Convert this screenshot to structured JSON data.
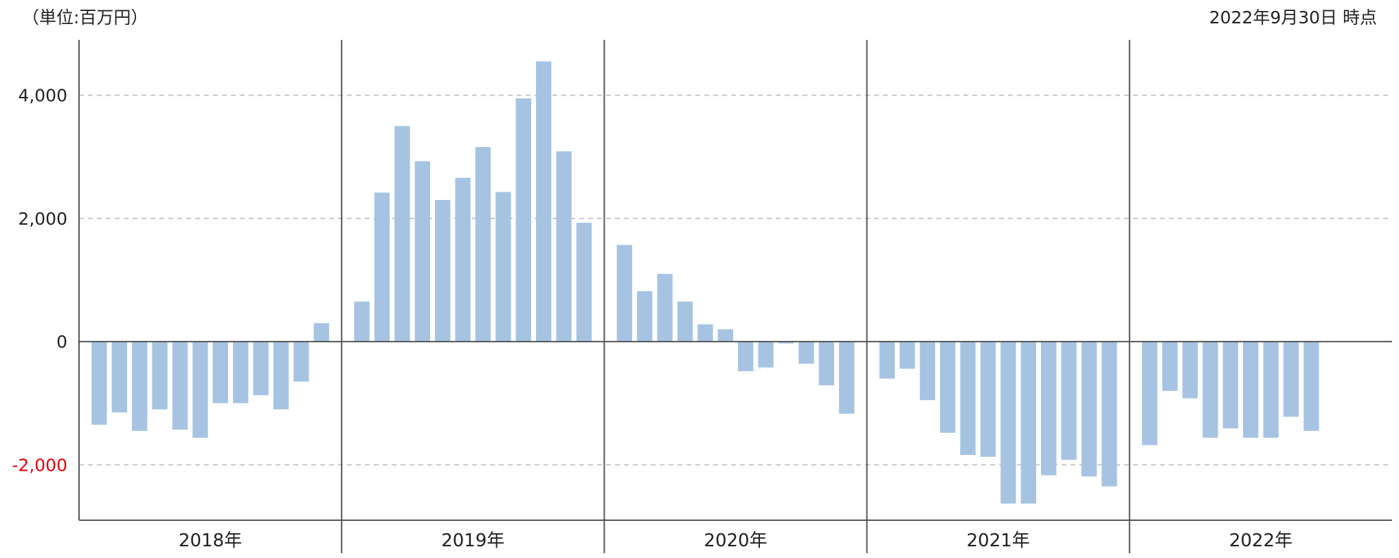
{
  "header": {
    "unit": "（単位:百万円）",
    "as_of": "2022年9月30日 時点"
  },
  "colors": {
    "bar": "#a6c4e2",
    "axis": "#555555",
    "grid": "#c8c8c8",
    "negative_tick": "#e8000b"
  },
  "chart_data": {
    "type": "bar",
    "ylim": [
      -2900,
      4900
    ],
    "yticks": [
      -2000,
      0,
      2000,
      4000
    ],
    "ytick_labels": [
      "-2,000",
      "0",
      "2,000",
      "4,000"
    ],
    "grid": true,
    "years": [
      {
        "label": "2018年",
        "values": [
          -1350,
          -1150,
          -1450,
          -1100,
          -1430,
          -1560,
          -1000,
          -1000,
          -870,
          -1100,
          -650,
          300
        ]
      },
      {
        "label": "2019年",
        "values": [
          650,
          2420,
          3500,
          2930,
          2300,
          2660,
          3160,
          2430,
          3950,
          4550,
          3090,
          1930
        ]
      },
      {
        "label": "2020年",
        "values": [
          1570,
          820,
          1100,
          650,
          280,
          200,
          -480,
          -420,
          -30,
          -360,
          -710,
          -1170
        ]
      },
      {
        "label": "2021年",
        "values": [
          -600,
          -440,
          -950,
          -1480,
          -1840,
          -1870,
          -2630,
          -2630,
          -2170,
          -1920,
          -2190,
          -2350
        ]
      },
      {
        "label": "2022年",
        "values": [
          -1680,
          -800,
          -920,
          -1560,
          -1410,
          -1560,
          -1560,
          -1220,
          -1450
        ]
      }
    ]
  }
}
